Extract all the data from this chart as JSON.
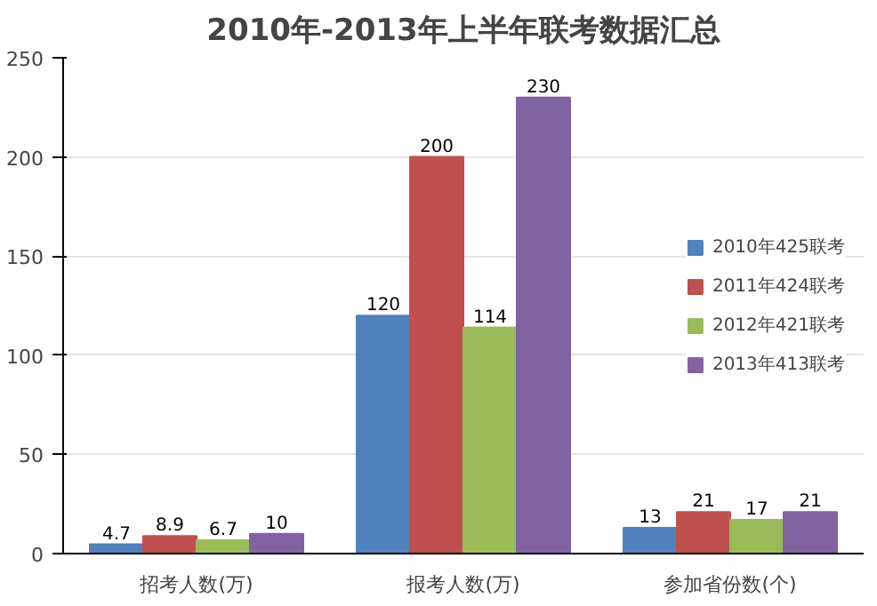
{
  "chart_data": {
    "type": "bar",
    "title": "2010年-2013年上半年联考数据汇总",
    "categories": [
      "招考人数(万)",
      "报考人数(万)",
      "参加省份数(个)"
    ],
    "series": [
      {
        "name": "2010年425联考",
        "color": "#4f81bd",
        "values": [
          4.7,
          120,
          13
        ]
      },
      {
        "name": "2011年424联考",
        "color": "#c0504d",
        "values": [
          8.9,
          200,
          21
        ]
      },
      {
        "name": "2012年421联考",
        "color": "#9bbb59",
        "values": [
          6.7,
          114,
          17
        ]
      },
      {
        "name": "2013年413联考",
        "color": "#8064a2",
        "values": [
          10,
          230,
          21
        ]
      }
    ],
    "ylim": [
      0,
      250
    ],
    "yticks": [
      0,
      50,
      100,
      150,
      200,
      250
    ],
    "grid": "y",
    "legend": "right",
    "data_labels": true
  }
}
